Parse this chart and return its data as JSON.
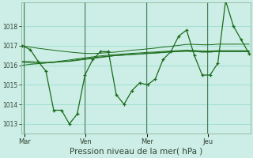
{
  "background_color": "#cceee6",
  "grid_color": "#99ddcc",
  "line_color": "#1a6b1a",
  "vline_color": "#557755",
  "title": "Pression niveau de la mer( hPa )",
  "ylim": [
    1012.5,
    1019.2
  ],
  "yticks": [
    1013,
    1014,
    1015,
    1016,
    1017,
    1018
  ],
  "yticklabels": [
    "1013",
    "1014",
    "1015",
    "1016",
    "1017",
    "1018"
  ],
  "day_labels": [
    "Mar",
    "Ven",
    "Mer",
    "Jeu"
  ],
  "day_positions": [
    0.08,
    2.65,
    5.22,
    7.78
  ],
  "vline_positions": [
    0.05,
    2.62,
    5.19,
    7.75
  ],
  "xlim": [
    -0.05,
    9.55
  ],
  "series": {
    "volatile": [
      1017.0,
      1016.8,
      1016.2,
      1015.7,
      1013.7,
      1013.7,
      1013.0,
      1013.5,
      1015.5,
      1016.3,
      1016.7,
      1016.7,
      1014.5,
      1014.0,
      1014.7,
      1015.1,
      1015.0,
      1015.3,
      1016.3,
      1016.7,
      1017.5,
      1017.8,
      1016.5,
      1015.5,
      1015.5,
      1016.1,
      1019.3,
      1018.0,
      1017.3,
      1016.6
    ],
    "smooth1": [
      1016.2,
      1016.2,
      1016.15,
      1016.15,
      1016.15,
      1016.2,
      1016.2,
      1016.25,
      1016.3,
      1016.35,
      1016.4,
      1016.45,
      1016.5,
      1016.52,
      1016.55,
      1016.57,
      1016.6,
      1016.62,
      1016.65,
      1016.68,
      1016.7,
      1016.72,
      1016.7,
      1016.68,
      1016.68,
      1016.7,
      1016.7,
      1016.7,
      1016.7,
      1016.7
    ],
    "smooth2": [
      1016.15,
      1016.12,
      1016.1,
      1016.12,
      1016.15,
      1016.18,
      1016.22,
      1016.28,
      1016.33,
      1016.38,
      1016.43,
      1016.47,
      1016.5,
      1016.53,
      1016.56,
      1016.58,
      1016.62,
      1016.64,
      1016.67,
      1016.69,
      1016.72,
      1016.73,
      1016.71,
      1016.68,
      1016.68,
      1016.71,
      1016.71,
      1016.71,
      1016.71,
      1016.71
    ],
    "trend1": [
      1016.0,
      1016.05,
      1016.08,
      1016.12,
      1016.17,
      1016.22,
      1016.27,
      1016.33,
      1016.38,
      1016.43,
      1016.48,
      1016.52,
      1016.55,
      1016.58,
      1016.61,
      1016.63,
      1016.66,
      1016.68,
      1016.71,
      1016.73,
      1016.75,
      1016.77,
      1016.76,
      1016.73,
      1016.73,
      1016.75,
      1016.75,
      1016.75,
      1016.75,
      1016.75
    ],
    "trend2": [
      1017.0,
      1016.93,
      1016.87,
      1016.82,
      1016.77,
      1016.72,
      1016.68,
      1016.64,
      1016.61,
      1016.6,
      1016.62,
      1016.65,
      1016.68,
      1016.72,
      1016.77,
      1016.8,
      1016.84,
      1016.88,
      1016.93,
      1016.97,
      1017.02,
      1017.07,
      1017.07,
      1017.05,
      1017.05,
      1017.08,
      1017.08,
      1017.08,
      1017.08,
      1017.08
    ]
  }
}
